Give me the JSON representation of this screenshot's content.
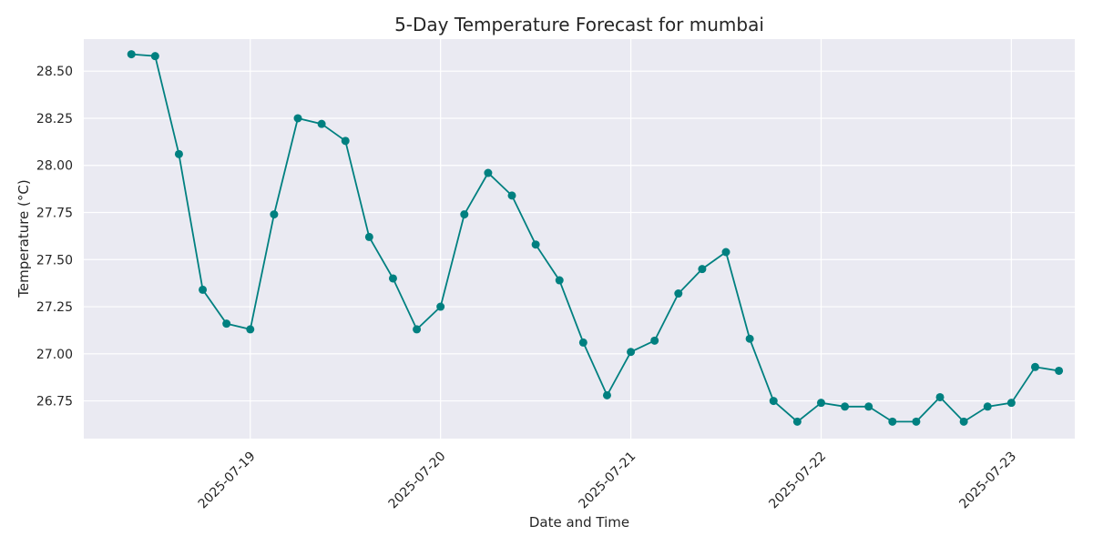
{
  "chart_data": {
    "type": "line",
    "title": "5-Day Temperature Forecast for mumbai",
    "xlabel": "Date and Time",
    "ylabel": "Temperature (°C)",
    "x_axis": {
      "type": "date",
      "range": [
        "2025-07-18T03:00",
        "2025-07-23T08:00"
      ],
      "ticks": [
        "2025-07-19",
        "2025-07-20",
        "2025-07-21",
        "2025-07-22",
        "2025-07-23"
      ],
      "tick_label_rotation": "45 degrees"
    },
    "y_axis": {
      "range": [
        26.55,
        28.67
      ],
      "ticks": [
        "26.75",
        "27.00",
        "27.25",
        "27.50",
        "27.75",
        "28.00",
        "28.25",
        "28.50"
      ]
    },
    "grid": true,
    "background": "#eaeaf2",
    "line_color": "#008080",
    "series": [
      {
        "x": [
          "2025-07-18T09:00",
          "2025-07-18T12:00",
          "2025-07-18T15:00",
          "2025-07-18T18:00",
          "2025-07-18T21:00",
          "2025-07-19T00:00",
          "2025-07-19T03:00",
          "2025-07-19T06:00",
          "2025-07-19T09:00",
          "2025-07-19T12:00",
          "2025-07-19T15:00",
          "2025-07-19T18:00",
          "2025-07-19T21:00",
          "2025-07-20T00:00",
          "2025-07-20T03:00",
          "2025-07-20T06:00",
          "2025-07-20T09:00",
          "2025-07-20T12:00",
          "2025-07-20T15:00",
          "2025-07-20T18:00",
          "2025-07-20T21:00",
          "2025-07-21T00:00",
          "2025-07-21T03:00",
          "2025-07-21T06:00",
          "2025-07-21T09:00",
          "2025-07-21T12:00",
          "2025-07-21T15:00",
          "2025-07-21T18:00",
          "2025-07-21T21:00",
          "2025-07-22T00:00",
          "2025-07-22T03:00",
          "2025-07-22T06:00",
          "2025-07-22T09:00",
          "2025-07-22T12:00",
          "2025-07-22T15:00",
          "2025-07-22T18:00",
          "2025-07-22T21:00",
          "2025-07-23T00:00",
          "2025-07-23T03:00",
          "2025-07-23T06:00"
        ],
        "y": [
          28.59,
          28.58,
          28.06,
          27.34,
          27.16,
          27.13,
          27.74,
          28.25,
          28.22,
          28.13,
          27.62,
          27.4,
          27.13,
          27.25,
          27.74,
          27.96,
          27.84,
          27.58,
          27.39,
          27.06,
          26.78,
          27.01,
          27.07,
          27.32,
          27.45,
          27.54,
          27.08,
          26.75,
          26.64,
          26.74,
          26.72,
          26.72,
          26.64,
          26.64,
          26.77,
          26.64,
          26.72,
          26.74,
          26.93,
          26.91
        ]
      }
    ]
  }
}
